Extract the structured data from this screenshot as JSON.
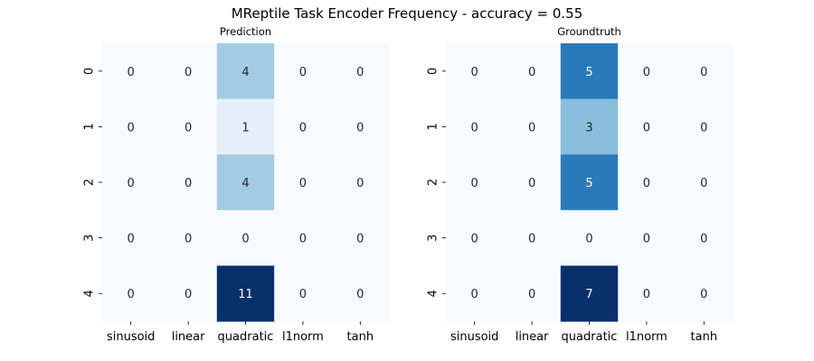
{
  "figure": {
    "title": "MReptile Task Encoder Frequency - accuracy = 0.55"
  },
  "chart_data": [
    {
      "type": "heatmap",
      "title": "Prediction",
      "x_categories": [
        "sinusoid",
        "linear",
        "quadratic",
        "l1norm",
        "tanh"
      ],
      "y_categories": [
        "0",
        "1",
        "2",
        "3",
        "4"
      ],
      "values": [
        [
          0,
          0,
          4,
          0,
          0
        ],
        [
          0,
          0,
          1,
          0,
          0
        ],
        [
          0,
          0,
          4,
          0,
          0
        ],
        [
          0,
          0,
          0,
          0,
          0
        ],
        [
          0,
          0,
          11,
          0,
          0
        ]
      ],
      "colormap": "Blues",
      "vmin": 0,
      "vmax": 11,
      "colorbar": false
    },
    {
      "type": "heatmap",
      "title": "Groundtruth",
      "x_categories": [
        "sinusoid",
        "linear",
        "quadratic",
        "l1norm",
        "tanh"
      ],
      "y_categories": [
        "0",
        "1",
        "2",
        "3",
        "4"
      ],
      "values": [
        [
          0,
          0,
          5,
          0,
          0
        ],
        [
          0,
          0,
          3,
          0,
          0
        ],
        [
          0,
          0,
          5,
          0,
          0
        ],
        [
          0,
          0,
          0,
          0,
          0
        ],
        [
          0,
          0,
          7,
          0,
          0
        ]
      ],
      "colormap": "Blues",
      "vmin": 0,
      "vmax": 7,
      "colorbar": false
    }
  ]
}
